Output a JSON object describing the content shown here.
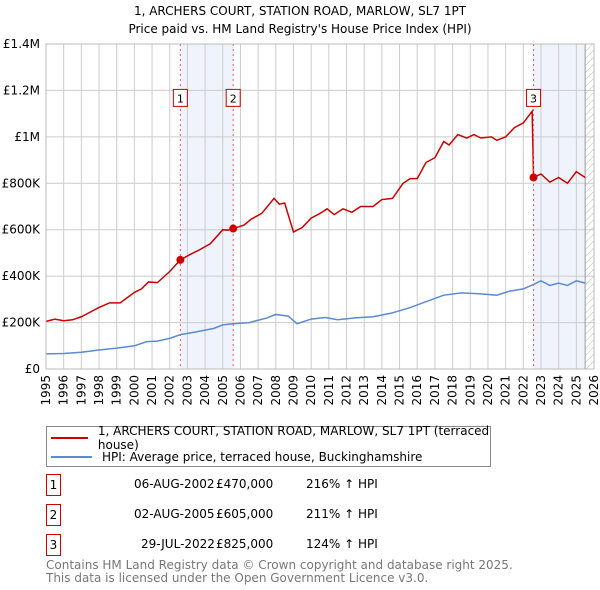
{
  "chart_data": {
    "type": "line",
    "title": "1, ARCHERS COURT, STATION ROAD, MARLOW, SL7 1PT",
    "subtitle": "Price paid vs. HM Land Registry's House Price Index (HPI)",
    "xlim": [
      1995,
      2026
    ],
    "ylim": [
      0,
      1400000
    ],
    "y_ticks": [
      {
        "v": 0,
        "l": "£0"
      },
      {
        "v": 200000,
        "l": "£200K"
      },
      {
        "v": 400000,
        "l": "£400K"
      },
      {
        "v": 600000,
        "l": "£600K"
      },
      {
        "v": 800000,
        "l": "£800K"
      },
      {
        "v": 1000000,
        "l": "£1M"
      },
      {
        "v": 1200000,
        "l": "£1.2M"
      },
      {
        "v": 1400000,
        "l": "£1.4M"
      }
    ],
    "x_ticks": [
      "1995",
      "1996",
      "1997",
      "1998",
      "1999",
      "2000",
      "2001",
      "2002",
      "2003",
      "2004",
      "2005",
      "2006",
      "2007",
      "2008",
      "2009",
      "2010",
      "2011",
      "2012",
      "2013",
      "2014",
      "2015",
      "2016",
      "2017",
      "2018",
      "2019",
      "2020",
      "2021",
      "2022",
      "2023",
      "2024",
      "2025",
      "2026"
    ],
    "series": [
      {
        "name": "1, ARCHERS COURT, STATION ROAD, MARLOW, SL7 1PT (terraced house)",
        "color": "#cc0000",
        "points": [
          [
            1995,
            205000
          ],
          [
            1995.5,
            215000
          ],
          [
            1996,
            208000
          ],
          [
            1996.5,
            212000
          ],
          [
            1997,
            225000
          ],
          [
            1997.5,
            245000
          ],
          [
            1998,
            265000
          ],
          [
            1998.6,
            285000
          ],
          [
            1999.2,
            285000
          ],
          [
            2000,
            330000
          ],
          [
            2000.4,
            345000
          ],
          [
            2000.8,
            375000
          ],
          [
            2001.3,
            372000
          ],
          [
            2002,
            420000
          ],
          [
            2002.6,
            470000
          ],
          [
            2003.2,
            495000
          ],
          [
            2003.6,
            510000
          ],
          [
            2004.3,
            540000
          ],
          [
            2005,
            600000
          ],
          [
            2005.3,
            598000
          ],
          [
            2005.6,
            605000
          ],
          [
            2006.2,
            620000
          ],
          [
            2006.6,
            645000
          ],
          [
            2007.2,
            670000
          ],
          [
            2007.9,
            735000
          ],
          [
            2008.2,
            710000
          ],
          [
            2008.5,
            715000
          ],
          [
            2009,
            590000
          ],
          [
            2009.5,
            610000
          ],
          [
            2010,
            650000
          ],
          [
            2010.5,
            670000
          ],
          [
            2010.9,
            690000
          ],
          [
            2011.3,
            665000
          ],
          [
            2011.8,
            690000
          ],
          [
            2012.3,
            675000
          ],
          [
            2012.8,
            700000
          ],
          [
            2013.5,
            700000
          ],
          [
            2014,
            730000
          ],
          [
            2014.6,
            735000
          ],
          [
            2015.2,
            800000
          ],
          [
            2015.6,
            820000
          ],
          [
            2016,
            820000
          ],
          [
            2016.5,
            890000
          ],
          [
            2017,
            910000
          ],
          [
            2017.5,
            980000
          ],
          [
            2017.8,
            965000
          ],
          [
            2018.3,
            1010000
          ],
          [
            2018.8,
            995000
          ],
          [
            2019.2,
            1010000
          ],
          [
            2019.6,
            995000
          ],
          [
            2020.2,
            1000000
          ],
          [
            2020.5,
            985000
          ],
          [
            2021,
            1000000
          ],
          [
            2021.5,
            1040000
          ],
          [
            2022,
            1060000
          ],
          [
            2022.5,
            1110000
          ],
          [
            2022.58,
            825000
          ],
          [
            2023,
            840000
          ],
          [
            2023.5,
            805000
          ],
          [
            2024,
            825000
          ],
          [
            2024.5,
            800000
          ],
          [
            2025,
            850000
          ],
          [
            2025.5,
            825000
          ]
        ]
      },
      {
        "name": "HPI: Average price, terraced house, Buckinghamshire",
        "color": "#5b8bd0",
        "points": [
          [
            1995,
            65000
          ],
          [
            1996,
            67000
          ],
          [
            1997,
            72000
          ],
          [
            1998,
            82000
          ],
          [
            1999,
            90000
          ],
          [
            2000,
            100000
          ],
          [
            2000.7,
            118000
          ],
          [
            2001.3,
            120000
          ],
          [
            2002,
            132000
          ],
          [
            2002.6,
            148000
          ],
          [
            2003.5,
            160000
          ],
          [
            2004.5,
            175000
          ],
          [
            2005,
            190000
          ],
          [
            2005.6,
            195000
          ],
          [
            2006.5,
            200000
          ],
          [
            2007.5,
            220000
          ],
          [
            2008,
            235000
          ],
          [
            2008.7,
            228000
          ],
          [
            2009.2,
            195000
          ],
          [
            2010,
            215000
          ],
          [
            2010.8,
            222000
          ],
          [
            2011.5,
            212000
          ],
          [
            2012.5,
            220000
          ],
          [
            2013.5,
            225000
          ],
          [
            2014.5,
            240000
          ],
          [
            2015.5,
            262000
          ],
          [
            2016.5,
            290000
          ],
          [
            2017.5,
            318000
          ],
          [
            2018.5,
            328000
          ],
          [
            2019.5,
            324000
          ],
          [
            2020.5,
            318000
          ],
          [
            2021.2,
            335000
          ],
          [
            2022,
            345000
          ],
          [
            2022.6,
            365000
          ],
          [
            2023,
            380000
          ],
          [
            2023.5,
            360000
          ],
          [
            2024,
            370000
          ],
          [
            2024.5,
            360000
          ],
          [
            2025,
            380000
          ],
          [
            2025.5,
            370000
          ]
        ]
      }
    ],
    "transactions": [
      {
        "id": "1",
        "x": 2002.6,
        "value": 470000,
        "date": "06-AUG-2002",
        "price": "£470,000",
        "hpi": "216% ↑ HPI"
      },
      {
        "id": "2",
        "x": 2005.59,
        "value": 605000,
        "date": "02-AUG-2005",
        "price": "£605,000",
        "hpi": "211% ↑ HPI"
      },
      {
        "id": "3",
        "x": 2022.58,
        "value": 825000,
        "date": "29-JUL-2022",
        "price": "£825,000",
        "hpi": "124% ↑ HPI"
      }
    ],
    "shaded_ranges": [
      [
        2002.6,
        2005.59
      ],
      [
        2022.58,
        2025.5
      ]
    ],
    "hatched_from": 2025.5
  },
  "legend": {
    "red": "1, ARCHERS COURT, STATION ROAD, MARLOW, SL7 1PT (terraced house)",
    "blue": "HPI: Average price, terraced house, Buckinghamshire"
  },
  "footer": {
    "line1": "Contains HM Land Registry data © Crown copyright and database right 2025.",
    "line2": "This data is licensed under the Open Government Licence v3.0."
  }
}
